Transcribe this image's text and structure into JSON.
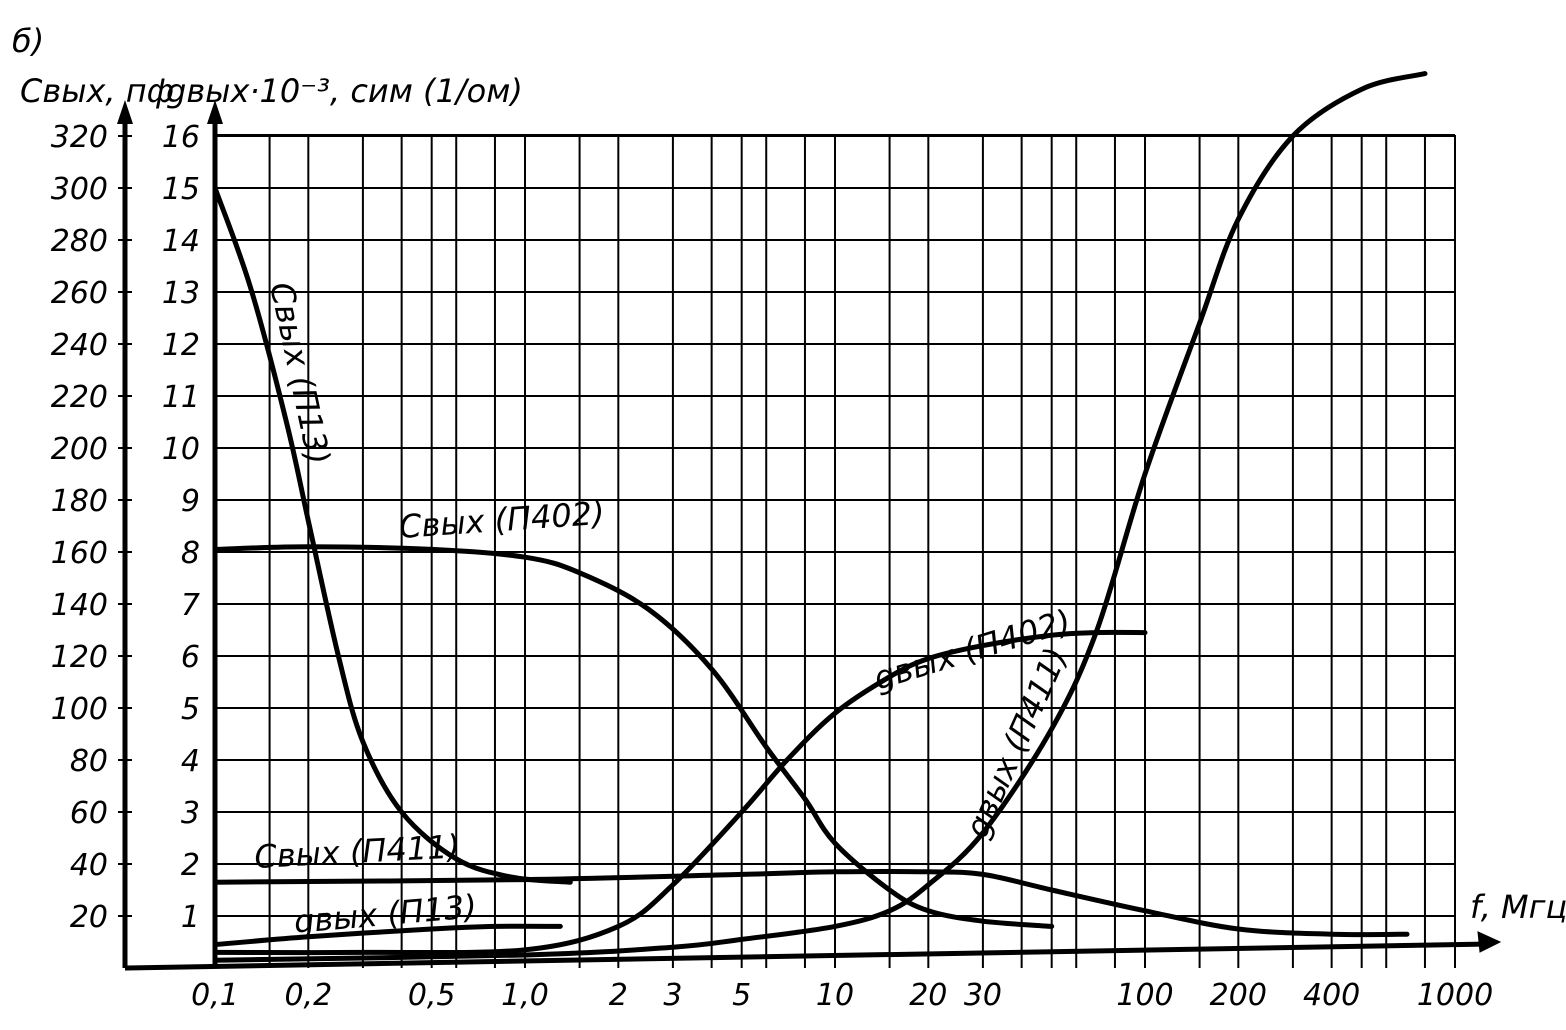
{
  "panel_label": "б)",
  "chart_data": {
    "type": "line",
    "title": "",
    "x_axis": {
      "label": "f, Мгц",
      "scale": "log",
      "range": [
        0.1,
        1000
      ],
      "ticks": [
        "0,1",
        "0,2",
        "0,5",
        "1,0",
        "2",
        "3",
        "5",
        "10",
        "20",
        "30",
        "100",
        "200",
        "400",
        "1000"
      ],
      "tick_values": [
        0.1,
        0.2,
        0.5,
        1.0,
        2,
        3,
        5,
        10,
        20,
        30,
        100,
        200,
        400,
        1000
      ]
    },
    "y_axis_left": {
      "label": "Cвых, пф",
      "range": [
        0,
        330
      ],
      "ticks": [
        "20",
        "40",
        "60",
        "80",
        "100",
        "120",
        "140",
        "160",
        "180",
        "200",
        "220",
        "240",
        "260",
        "280",
        "300",
        "320"
      ],
      "tick_values": [
        20,
        40,
        60,
        80,
        100,
        120,
        140,
        160,
        180,
        200,
        220,
        240,
        260,
        280,
        300,
        320
      ]
    },
    "y_axis_right": {
      "label": "gвых·10⁻³, сим (1/ом)",
      "range": [
        0,
        16.5
      ],
      "ticks": [
        "1",
        "2",
        "3",
        "4",
        "5",
        "6",
        "7",
        "8",
        "9",
        "10",
        "11",
        "12",
        "13",
        "14",
        "15",
        "16"
      ],
      "tick_values": [
        1,
        2,
        3,
        4,
        5,
        6,
        7,
        8,
        9,
        10,
        11,
        12,
        13,
        14,
        15,
        16
      ]
    },
    "grid": true,
    "series": [
      {
        "name": "Cвых (П13)",
        "axis": "left",
        "x": [
          0.1,
          0.13,
          0.17,
          0.2,
          0.25,
          0.3,
          0.4,
          0.6,
          0.9,
          1.4
        ],
        "y": [
          300,
          262,
          210,
          172,
          120,
          87,
          60,
          42,
          35,
          33
        ]
      },
      {
        "name": "Cвых (П402)",
        "axis": "left",
        "x": [
          0.1,
          0.2,
          0.5,
          1.0,
          1.5,
          2.5,
          4,
          6,
          8,
          10,
          15,
          20,
          30,
          50
        ],
        "y": [
          161,
          162,
          161,
          158,
          152,
          138,
          115,
          85,
          65,
          48,
          30,
          22,
          18,
          16
        ]
      },
      {
        "name": "Cвых (П411)",
        "axis": "left",
        "x": [
          0.1,
          1,
          5,
          10,
          20,
          30,
          50,
          100,
          200,
          400,
          700
        ],
        "y": [
          33,
          34,
          36,
          37,
          37,
          36,
          30,
          22,
          15,
          13,
          13
        ]
      },
      {
        "name": "gвых (П13)",
        "axis": "right",
        "x": [
          0.1,
          0.2,
          0.5,
          0.8,
          1.3
        ],
        "y": [
          0.45,
          0.6,
          0.75,
          0.8,
          0.8
        ]
      },
      {
        "name": "gвых (П402)",
        "axis": "right",
        "x": [
          0.1,
          0.3,
          1.0,
          2,
          3,
          5,
          7,
          10,
          15,
          20,
          30,
          50,
          70,
          100
        ],
        "y": [
          0.3,
          0.3,
          0.35,
          0.8,
          1.6,
          3.0,
          4.0,
          4.9,
          5.6,
          5.95,
          6.2,
          6.4,
          6.45,
          6.45
        ]
      },
      {
        "name": "gвых (П411)",
        "axis": "right",
        "x": [
          0.1,
          1,
          3,
          5,
          10,
          15,
          20,
          30,
          50,
          70,
          100,
          150,
          200,
          300,
          500,
          800
        ],
        "y": [
          0.15,
          0.25,
          0.4,
          0.55,
          0.8,
          1.1,
          1.6,
          2.6,
          4.6,
          6.5,
          9.5,
          12.4,
          14.4,
          16.0,
          16.9,
          17.2
        ]
      }
    ]
  }
}
